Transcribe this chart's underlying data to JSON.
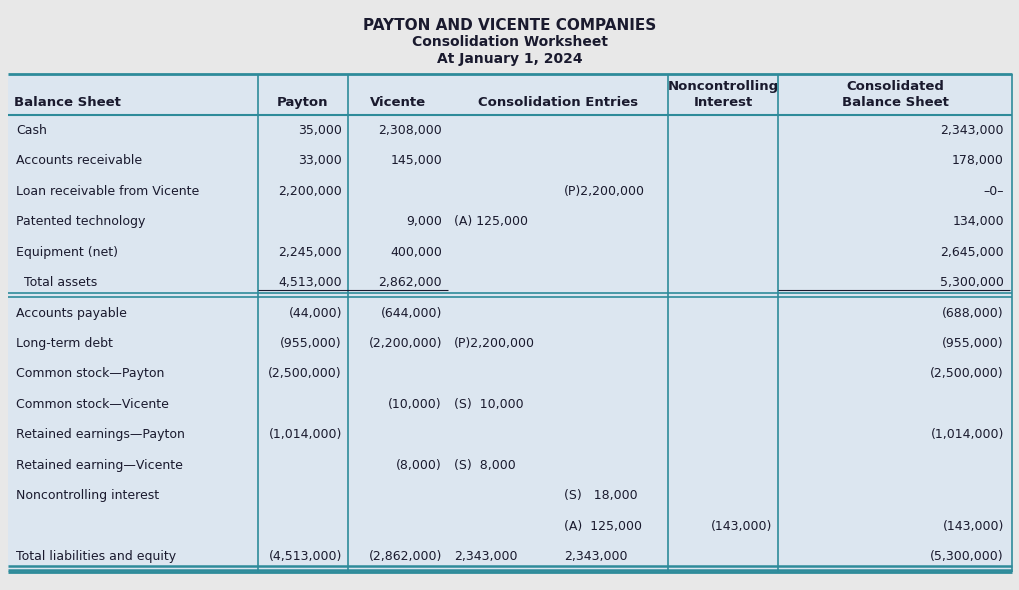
{
  "title1": "PAYTON AND VICENTE COMPANIES",
  "title2": "Consolidation Worksheet",
  "title3": "At January 1, 2024",
  "bg_color": "#e8e8e8",
  "table_bg": "#dce6f0",
  "teal_color": "#2E8B9A",
  "text_color": "#1a1a2e",
  "header_row": {
    "col0": "Balance Sheet",
    "col1": "Payton",
    "col2": "Vicente",
    "col3": "Consolidation Entries",
    "col5": "Noncontrolling\nInterest",
    "col6": "Consolidated\nBalance Sheet"
  },
  "rows": [
    {
      "label": "Cash",
      "payton": "35,000",
      "vicente": "2,308,000",
      "ce_dr": "",
      "ce_cr": "",
      "nci": "",
      "consol": "2,343,000",
      "total_assets_sep": false,
      "total_liab_sep": false
    },
    {
      "label": "Accounts receivable",
      "payton": "33,000",
      "vicente": "145,000",
      "ce_dr": "",
      "ce_cr": "",
      "nci": "",
      "consol": "178,000",
      "total_assets_sep": false,
      "total_liab_sep": false
    },
    {
      "label": "Loan receivable from Vicente",
      "payton": "2,200,000",
      "vicente": "",
      "ce_dr": "",
      "ce_cr": "(P)2,200,000",
      "nci": "",
      "consol": "–0–",
      "total_assets_sep": false,
      "total_liab_sep": false
    },
    {
      "label": "Patented technology",
      "payton": "",
      "vicente": "9,000",
      "ce_dr": "(A) 125,000",
      "ce_cr": "",
      "nci": "",
      "consol": "134,000",
      "total_assets_sep": false,
      "total_liab_sep": false
    },
    {
      "label": "Equipment (net)",
      "payton": "2,245,000",
      "vicente": "400,000",
      "ce_dr": "",
      "ce_cr": "",
      "nci": "",
      "consol": "2,645,000",
      "total_assets_sep": false,
      "total_liab_sep": false
    },
    {
      "label": "  Total assets",
      "payton": "4,513,000",
      "vicente": "2,862,000",
      "ce_dr": "",
      "ce_cr": "",
      "nci": "",
      "consol": "5,300,000",
      "total_assets_sep": true,
      "total_liab_sep": false
    },
    {
      "label": "Accounts payable",
      "payton": "(44,000)",
      "vicente": "(644,000)",
      "ce_dr": "",
      "ce_cr": "",
      "nci": "",
      "consol": "(688,000)",
      "total_assets_sep": false,
      "total_liab_sep": false
    },
    {
      "label": "Long-term debt",
      "payton": "(955,000)",
      "vicente": "(2,200,000)",
      "ce_dr": "(P)2,200,000",
      "ce_cr": "",
      "nci": "",
      "consol": "(955,000)",
      "total_assets_sep": false,
      "total_liab_sep": false
    },
    {
      "label": "Common stock—Payton",
      "payton": "(2,500,000)",
      "vicente": "",
      "ce_dr": "",
      "ce_cr": "",
      "nci": "",
      "consol": "(2,500,000)",
      "total_assets_sep": false,
      "total_liab_sep": false
    },
    {
      "label": "Common stock—Vicente",
      "payton": "",
      "vicente": "(10,000)",
      "ce_dr": "(S)  10,000",
      "ce_cr": "",
      "nci": "",
      "consol": "",
      "total_assets_sep": false,
      "total_liab_sep": false
    },
    {
      "label": "Retained earnings—Payton",
      "payton": "(1,014,000)",
      "vicente": "",
      "ce_dr": "",
      "ce_cr": "",
      "nci": "",
      "consol": "(1,014,000)",
      "total_assets_sep": false,
      "total_liab_sep": false
    },
    {
      "label": "Retained earning—Vicente",
      "payton": "",
      "vicente": "(8,000)",
      "ce_dr": "(S)  8,000",
      "ce_cr": "",
      "nci": "",
      "consol": "",
      "total_assets_sep": false,
      "total_liab_sep": false
    },
    {
      "label": "Noncontrolling interest",
      "payton": "",
      "vicente": "",
      "ce_dr": "",
      "ce_cr": "(S)   18,000",
      "nci": "",
      "consol": "",
      "total_assets_sep": false,
      "total_liab_sep": false
    },
    {
      "label": "",
      "payton": "",
      "vicente": "",
      "ce_dr": "",
      "ce_cr": "(A)  125,000",
      "nci": "(143,000)",
      "consol": "(143,000)",
      "total_assets_sep": false,
      "total_liab_sep": false
    },
    {
      "label": "Total liabilities and equity",
      "payton": "(4,513,000)",
      "vicente": "(2,862,000)",
      "ce_dr": "2,343,000",
      "ce_cr": "2,343,000",
      "nci": "",
      "consol": "(5,300,000)",
      "total_assets_sep": false,
      "total_liab_sep": true
    }
  ]
}
